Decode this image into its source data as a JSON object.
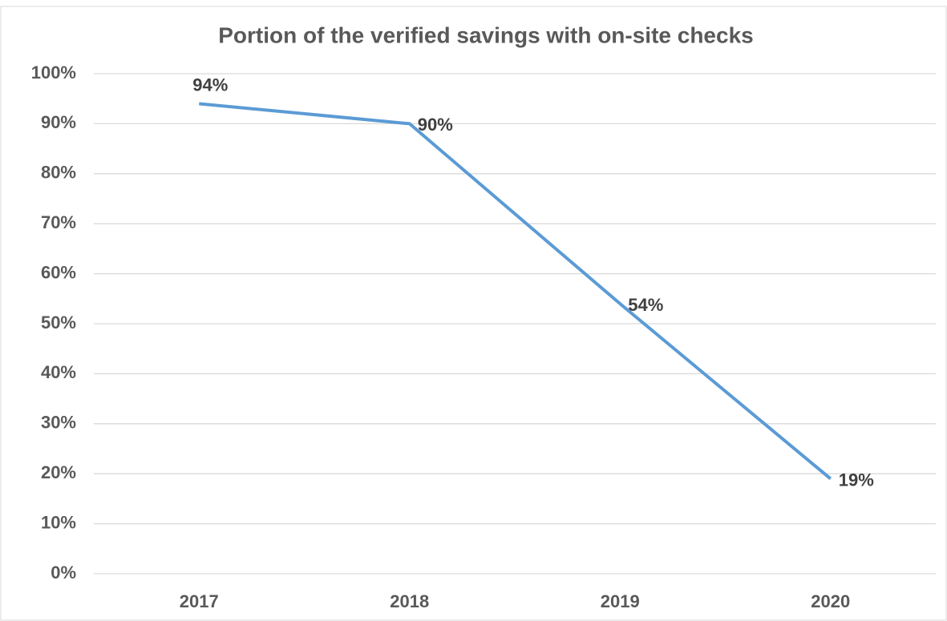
{
  "chart_data": {
    "type": "line",
    "title": "Portion of the verified savings with on-site checks",
    "categories": [
      "2017",
      "2018",
      "2019",
      "2020"
    ],
    "series": [
      {
        "name": "Portion",
        "color": "#5b9bd5",
        "values": [
          94,
          90,
          54,
          19
        ],
        "value_labels": [
          "94%",
          "90%",
          "54%",
          "19%"
        ]
      }
    ],
    "ylim": [
      0,
      100
    ],
    "yticks": [
      {
        "value": 0,
        "label": "0%"
      },
      {
        "value": 10,
        "label": "10%"
      },
      {
        "value": 20,
        "label": "20%"
      },
      {
        "value": 30,
        "label": "30%"
      },
      {
        "value": 40,
        "label": "40%"
      },
      {
        "value": 50,
        "label": "50%"
      },
      {
        "value": 60,
        "label": "60%"
      },
      {
        "value": 70,
        "label": "70%"
      },
      {
        "value": 80,
        "label": "80%"
      },
      {
        "value": 90,
        "label": "90%"
      },
      {
        "value": 100,
        "label": "100%"
      }
    ],
    "grid": true
  }
}
